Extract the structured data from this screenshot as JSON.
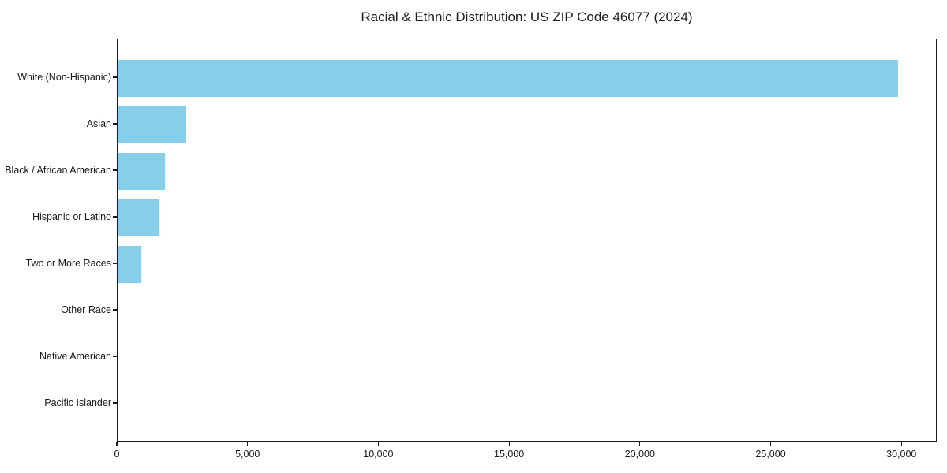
{
  "figure": {
    "title": "Racial & Ethnic Distribution: US ZIP Code 46077 (2024)"
  },
  "chart_data": {
    "type": "bar",
    "orientation": "horizontal",
    "title": "Racial & Ethnic Distribution: US ZIP Code 46077 (2024)",
    "xlabel": "",
    "ylabel": "",
    "categories": [
      "White (Non-Hispanic)",
      "Asian",
      "Black / African American",
      "Hispanic or Latino",
      "Two or More Races",
      "Other Race",
      "Native American",
      "Pacific Islander"
    ],
    "values": [
      29850,
      2610,
      1800,
      1580,
      890,
      0,
      0,
      0
    ],
    "xlim": [
      0,
      31350
    ],
    "x_ticks": [
      0,
      5000,
      10000,
      15000,
      20000,
      25000,
      30000
    ],
    "x_tick_labels": [
      "0",
      "5,000",
      "10,000",
      "15,000",
      "20,000",
      "25,000",
      "30,000"
    ],
    "bar_color": "#87CEEB",
    "text_color": "#1a1a1a",
    "grid": false,
    "legend": null,
    "spines": "all-four"
  }
}
